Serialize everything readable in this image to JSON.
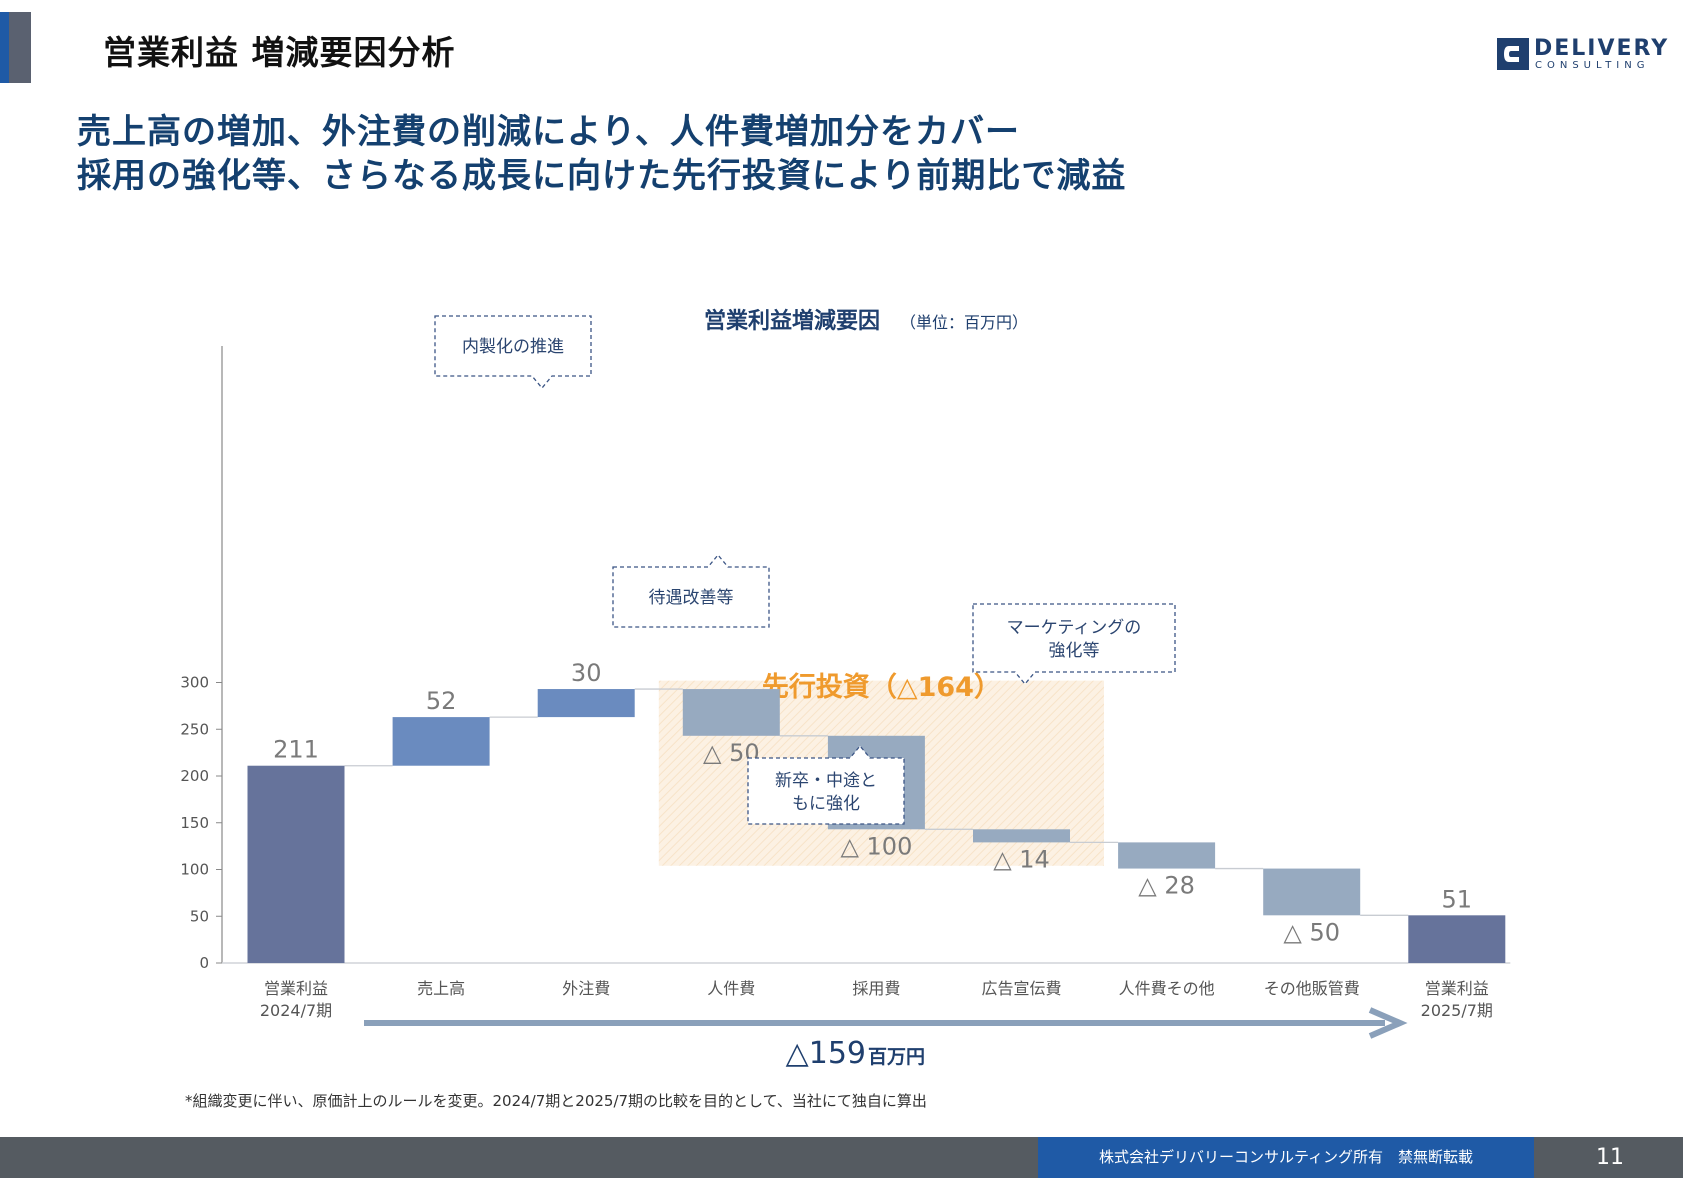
{
  "slide": {
    "title": "営業利益 増減要因分析",
    "headline_line1": "売上高の増加、外注費の削減により、人件費増加分をカバー",
    "headline_line2": "採用の強化等、さらなる成長に向けた先行投資により前期比で減益",
    "footnote": "*組織変更に伴い、原価計上のルールを変更。2024/7期と2025/7期の比較を目的として、当社にて独自に算出",
    "copyright": "株式会社デリバリーコンサルティング所有　禁無断転載",
    "page_number": "11"
  },
  "logo": {
    "word1": "DELIVERY",
    "word2": "CONSULTING",
    "color": "#1f3f6e"
  },
  "chart_data": {
    "type": "bar",
    "subtype": "waterfall",
    "title": "営業利益増減要因",
    "unit_label": "（単位：百万円）",
    "categories": [
      "営業利益\n2024/7期",
      "売上高",
      "外注費",
      "人件費",
      "採用費",
      "広告宣伝費",
      "人件費その他",
      "その他販管費",
      "営業利益\n2025/7期"
    ],
    "steps": [
      {
        "kind": "total",
        "value": 211,
        "label": "211"
      },
      {
        "kind": "increase",
        "value": 52,
        "label": "52"
      },
      {
        "kind": "increase",
        "value": 30,
        "label": "30"
      },
      {
        "kind": "decrease",
        "value": -50,
        "label": "△ 50"
      },
      {
        "kind": "decrease",
        "value": -100,
        "label": "△ 100"
      },
      {
        "kind": "decrease",
        "value": -14,
        "label": "△ 14"
      },
      {
        "kind": "decrease",
        "value": -28,
        "label": "△ 28"
      },
      {
        "kind": "decrease",
        "value": -50,
        "label": "△ 50"
      },
      {
        "kind": "total",
        "value": 51,
        "label": "51"
      }
    ],
    "yticks": [
      0,
      50,
      100,
      150,
      200,
      250,
      300
    ],
    "ylim": [
      0,
      330
    ],
    "grid": false,
    "colors": {
      "total": "#66739b",
      "increase": "#6a8bbf",
      "decrease": "#97aac0",
      "connector": "#c8ccd2",
      "axis": "#888888"
    },
    "highlight": {
      "label": "先行投資（△164）",
      "category_range": [
        3,
        5
      ],
      "color": "#fbeedc",
      "text_color": "#ef9a2d"
    },
    "callouts": [
      {
        "text": "内製化の推進",
        "target": 2
      },
      {
        "text": "待遇改善等",
        "target": 3
      },
      {
        "text": "新卒・中途と\nもに強化",
        "target": 4
      },
      {
        "text": "マーケティングの\n強化等",
        "target": 5
      }
    ],
    "summary": {
      "value": "△159",
      "unit": "百万円"
    }
  }
}
